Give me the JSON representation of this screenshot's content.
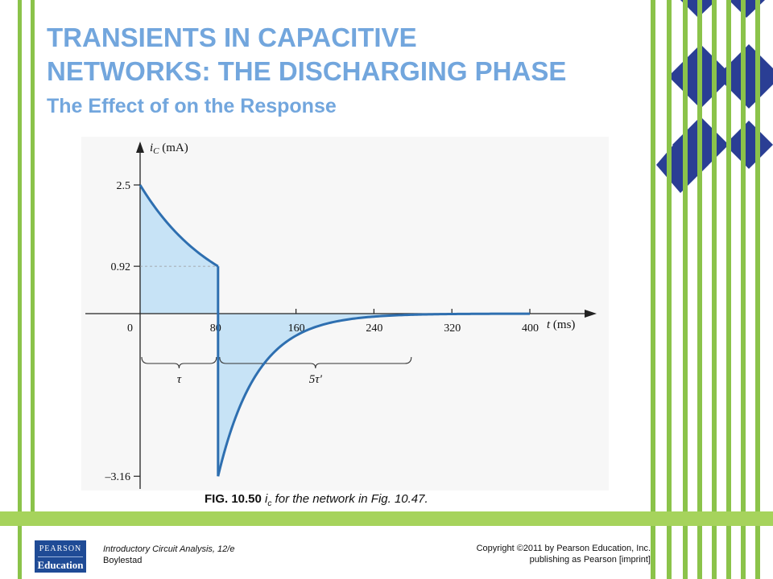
{
  "slide": {
    "title_line1": "TRANSIENTS IN CAPACITIVE",
    "title_line2": "NETWORKS: THE DISCHARGING PHASE",
    "subtitle": "The Effect of  on the Response",
    "caption_fig": "FIG. 10.50 ",
    "caption_var": "i",
    "caption_sub": "c",
    "caption_rest": " for the network in Fig. 10.47.",
    "footer_book_line1": "Introductory Circuit Analysis, 12/e",
    "footer_book_line2": "Boylestad",
    "footer_copy_line1": "Copyright ©2011 by Pearson Education, Inc.",
    "footer_copy_line2": "publishing as Pearson [imprint]",
    "logo_top": "PEARSON",
    "logo_bottom": "Education"
  },
  "colors": {
    "title": "#72a6dd",
    "green": "#8bc34a",
    "navy": "#2a3e94",
    "curve_fill": "#c7e3f6",
    "curve_stroke": "#2e6fb0"
  },
  "chart_data": {
    "type": "line",
    "ylabel_var": "i",
    "ylabel_sub": "C",
    "ylabel_unit": " (mA)",
    "xlabel_var": "t",
    "xlabel_unit": " (ms)",
    "x_ticks": [
      "0",
      "80",
      "160",
      "240",
      "320",
      "400"
    ],
    "y_ticks": [
      "2.5",
      "0.92",
      "–3.16"
    ],
    "xlim": [
      0,
      470
    ],
    "ylim": [
      -3.3,
      3.4
    ],
    "series": [
      {
        "x": [
          0,
          80,
          80,
          100,
          120,
          140,
          160,
          180,
          200,
          240,
          280,
          320,
          400
        ],
        "y": [
          2.5,
          0.92,
          -3.16,
          -1.66,
          -0.87,
          -0.46,
          -0.24,
          -0.13,
          -0.07,
          -0.02,
          -0.005,
          -0.001,
          0
        ]
      }
    ],
    "brackets": [
      {
        "label": "τ",
        "from": 0,
        "to": 80
      },
      {
        "label": "5τ′",
        "from": 80,
        "to": 280
      }
    ]
  }
}
